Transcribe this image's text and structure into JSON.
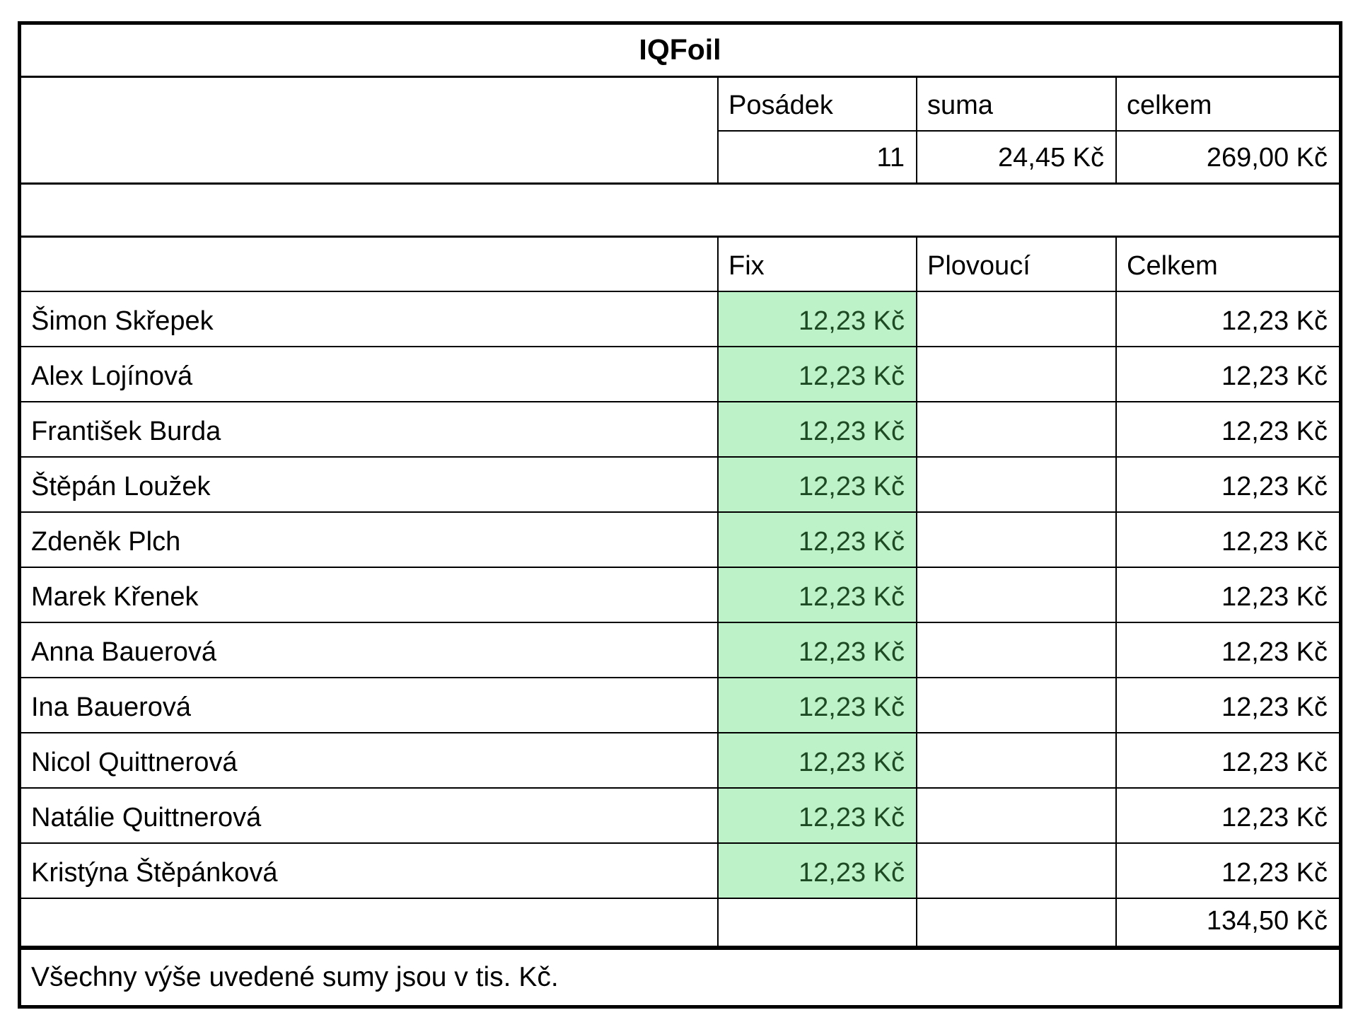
{
  "title": "IQFoil",
  "summary": {
    "col_posadek": "Posádek",
    "col_suma": "suma",
    "col_celkem": "celkem",
    "posadek_value": "11",
    "suma_value": "24,45 Kč",
    "celkem_value": "269,00 Kč"
  },
  "detail": {
    "col_fix": "Fix",
    "col_plovouci": "Plovoucí",
    "col_celkem": "Celkem",
    "rows": [
      {
        "name": "Šimon Skřepek",
        "fix": "12,23 Kč",
        "plovouci": "",
        "celkem": "12,23 Kč"
      },
      {
        "name": "Alex Lojínová",
        "fix": "12,23 Kč",
        "plovouci": "",
        "celkem": "12,23 Kč"
      },
      {
        "name": "František Burda",
        "fix": "12,23 Kč",
        "plovouci": "",
        "celkem": "12,23 Kč"
      },
      {
        "name": "Štěpán Loužek",
        "fix": "12,23 Kč",
        "plovouci": "",
        "celkem": "12,23 Kč"
      },
      {
        "name": "Zdeněk Plch",
        "fix": "12,23 Kč",
        "plovouci": "",
        "celkem": "12,23 Kč"
      },
      {
        "name": "Marek Křenek",
        "fix": "12,23 Kč",
        "plovouci": "",
        "celkem": "12,23 Kč"
      },
      {
        "name": "Anna Bauerová",
        "fix": "12,23 Kč",
        "plovouci": "",
        "celkem": "12,23 Kč"
      },
      {
        "name": "Ina Bauerová",
        "fix": "12,23 Kč",
        "plovouci": "",
        "celkem": "12,23 Kč"
      },
      {
        "name": "Nicol Quittnerová",
        "fix": "12,23 Kč",
        "plovouci": "",
        "celkem": "12,23 Kč"
      },
      {
        "name": "Natálie Quittnerová",
        "fix": "12,23 Kč",
        "plovouci": "",
        "celkem": "12,23 Kč"
      },
      {
        "name": "Kristýna Štěpánková",
        "fix": "12,23 Kč",
        "plovouci": "",
        "celkem": "12,23 Kč"
      }
    ],
    "total_celkem": "134,50 Kč"
  },
  "footnote": "Všechny výše uvedené sumy jsou v tis. Kč.",
  "colors": {
    "border": "#000000",
    "fix_cell_bg": "#bdf2c8",
    "fix_cell_text": "#1d4a23"
  }
}
